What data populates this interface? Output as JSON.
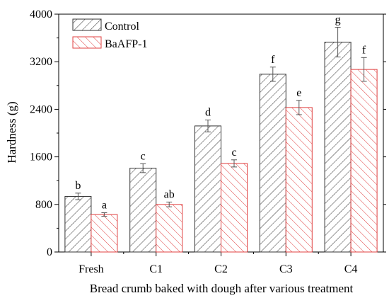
{
  "chart_data": {
    "type": "bar",
    "title": "",
    "xlabel": "Bread  crumb baked with dough  after various treatment",
    "ylabel": "Hardness (g)",
    "ylim": [
      0,
      4000
    ],
    "yticks": [
      0,
      800,
      1600,
      2400,
      3200,
      4000
    ],
    "categories": [
      "Fresh",
      "C1",
      "C2",
      "C3",
      "C4"
    ],
    "series": [
      {
        "name": "Control",
        "values": [
          935,
          1410,
          2120,
          2990,
          3530
        ],
        "errors": [
          55,
          75,
          100,
          120,
          250
        ],
        "labels": [
          "b",
          "c",
          "d",
          "f",
          "g"
        ],
        "color": "#000000",
        "hatch": "diagonal-left"
      },
      {
        "name": "BaAFP-1",
        "values": [
          630,
          800,
          1490,
          2430,
          3070
        ],
        "errors": [
          30,
          40,
          60,
          120,
          200
        ],
        "labels": [
          "a",
          "ab",
          "c",
          "e",
          "f"
        ],
        "color": "#e04040",
        "hatch": "diagonal-right"
      }
    ],
    "legend_position": "top-left",
    "grid": false
  }
}
